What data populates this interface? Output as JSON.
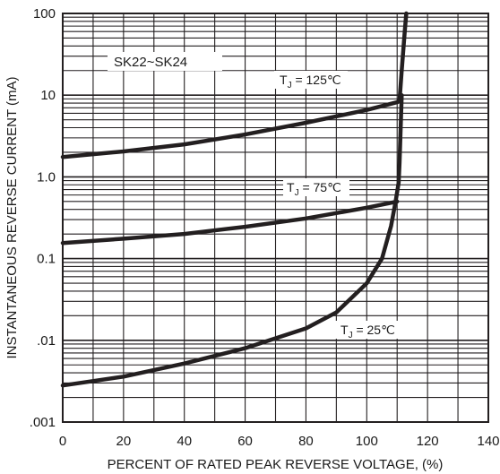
{
  "chart_data": {
    "type": "line",
    "title": "",
    "xlabel": "PERCENT OF RATED PEAK REVERSE VOLTAGE, (%)",
    "ylabel": "INSTANTANEOUS REVERSE CURRENT (mA)",
    "xlim": [
      0,
      140
    ],
    "ylim": [
      0.001,
      100
    ],
    "yscale": "log",
    "grid": true,
    "x_ticks": [
      "0",
      "20",
      "40",
      "60",
      "80",
      "100",
      "120",
      "140"
    ],
    "y_ticks": [
      ".001",
      ".01",
      "0.1",
      "1.0",
      "10",
      "100"
    ],
    "note": "SK22~SK24",
    "series": [
      {
        "name": "TJ = 125℃",
        "label_main": "T",
        "label_sub": "J",
        "label_rest": " = 125℃",
        "points": [
          [
            0,
            1.75
          ],
          [
            20,
            2.05
          ],
          [
            40,
            2.5
          ],
          [
            60,
            3.3
          ],
          [
            80,
            4.6
          ],
          [
            100,
            6.6
          ],
          [
            110,
            8.2
          ],
          [
            110.8,
            8.6
          ],
          [
            111.5,
            20
          ],
          [
            112.5,
            60
          ],
          [
            113,
            100
          ]
        ]
      },
      {
        "name": "TJ = 75℃",
        "label_main": "T",
        "label_sub": "J",
        "label_rest": " = 75℃",
        "points": [
          [
            0,
            0.155
          ],
          [
            20,
            0.175
          ],
          [
            40,
            0.2
          ],
          [
            60,
            0.245
          ],
          [
            80,
            0.31
          ],
          [
            100,
            0.42
          ],
          [
            110,
            0.5
          ]
        ]
      },
      {
        "name": "TJ = 25℃",
        "label_main": "T",
        "label_sub": "J",
        "label_rest": " = 25℃",
        "points": [
          [
            0,
            0.0028
          ],
          [
            20,
            0.0036
          ],
          [
            40,
            0.0052
          ],
          [
            60,
            0.008
          ],
          [
            80,
            0.014
          ],
          [
            90,
            0.022
          ],
          [
            100,
            0.05
          ],
          [
            105,
            0.1
          ],
          [
            108,
            0.25
          ],
          [
            109.5,
            0.5
          ],
          [
            110.5,
            0.85
          ],
          [
            110.8,
            1.5
          ],
          [
            111.5,
            10
          ]
        ]
      }
    ],
    "colors": {
      "curve": "#231f20",
      "grid": "#231f20",
      "background": "#ffffff"
    }
  }
}
